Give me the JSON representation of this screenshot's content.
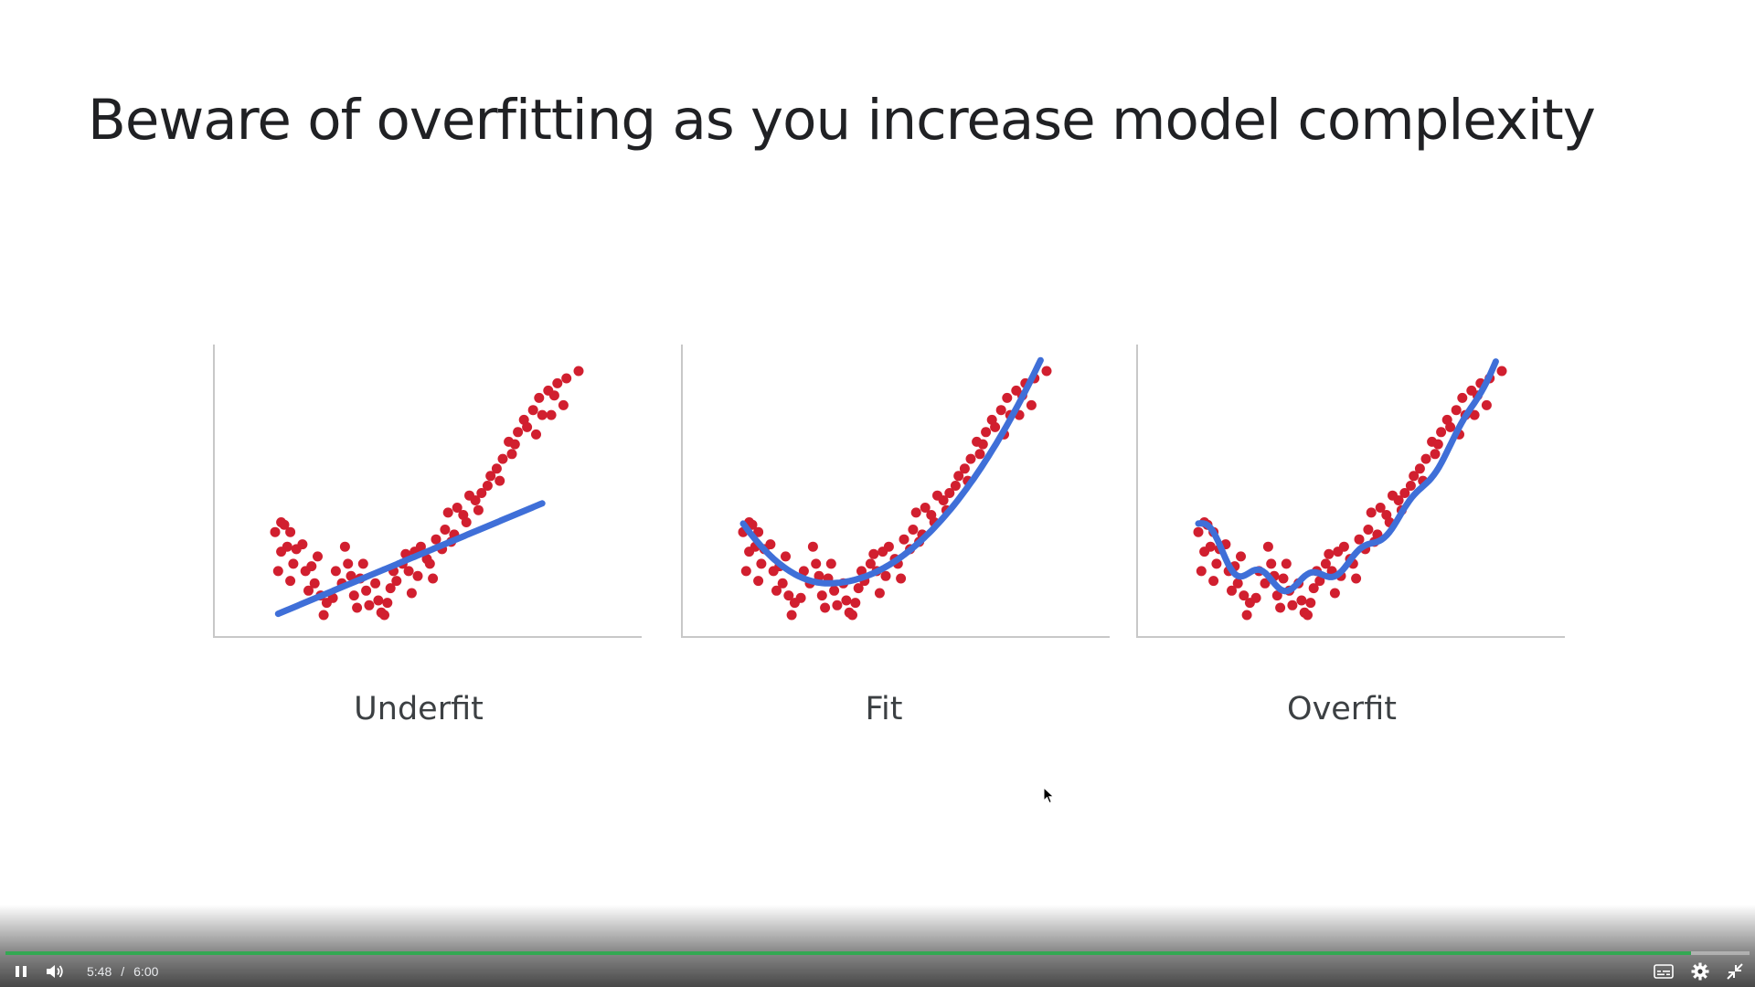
{
  "slide": {
    "title": "Beware of overfitting as you increase model complexity",
    "panels": [
      {
        "label": "Underfit",
        "fit": "linear"
      },
      {
        "label": "Fit",
        "fit": "quadratic"
      },
      {
        "label": "Overfit",
        "fit": "high-degree polynomial"
      }
    ]
  },
  "chart_data": {
    "type": "scatter",
    "point_color": "#d11f2f",
    "line_color": "#3f6fd8",
    "x_range": [
      0,
      1
    ],
    "y_range": [
      0,
      1
    ],
    "points": [
      [
        0.02,
        0.38
      ],
      [
        0.03,
        0.37
      ],
      [
        0.0,
        0.34
      ],
      [
        0.05,
        0.34
      ],
      [
        0.04,
        0.28
      ],
      [
        0.02,
        0.26
      ],
      [
        0.07,
        0.27
      ],
      [
        0.09,
        0.29
      ],
      [
        0.01,
        0.18
      ],
      [
        0.05,
        0.14
      ],
      [
        0.06,
        0.21
      ],
      [
        0.1,
        0.18
      ],
      [
        0.12,
        0.2
      ],
      [
        0.11,
        0.1
      ],
      [
        0.15,
        0.08
      ],
      [
        0.13,
        0.13
      ],
      [
        0.17,
        0.05
      ],
      [
        0.19,
        0.07
      ],
      [
        0.16,
        0.0
      ],
      [
        0.2,
        0.18
      ],
      [
        0.22,
        0.13
      ],
      [
        0.24,
        0.21
      ],
      [
        0.25,
        0.16
      ],
      [
        0.26,
        0.08
      ],
      [
        0.27,
        0.03
      ],
      [
        0.28,
        0.15
      ],
      [
        0.3,
        0.1
      ],
      [
        0.31,
        0.04
      ],
      [
        0.33,
        0.13
      ],
      [
        0.34,
        0.06
      ],
      [
        0.35,
        0.01
      ],
      [
        0.36,
        0.0
      ],
      [
        0.38,
        0.11
      ],
      [
        0.39,
        0.18
      ],
      [
        0.4,
        0.14
      ],
      [
        0.42,
        0.21
      ],
      [
        0.43,
        0.25
      ],
      [
        0.44,
        0.18
      ],
      [
        0.45,
        0.09
      ],
      [
        0.47,
        0.16
      ],
      [
        0.48,
        0.28
      ],
      [
        0.5,
        0.23
      ],
      [
        0.51,
        0.21
      ],
      [
        0.53,
        0.31
      ],
      [
        0.55,
        0.27
      ],
      [
        0.56,
        0.35
      ],
      [
        0.57,
        0.42
      ],
      [
        0.58,
        0.3
      ],
      [
        0.6,
        0.44
      ],
      [
        0.62,
        0.41
      ],
      [
        0.63,
        0.38
      ],
      [
        0.64,
        0.49
      ],
      [
        0.66,
        0.47
      ],
      [
        0.68,
        0.5
      ],
      [
        0.7,
        0.53
      ],
      [
        0.71,
        0.57
      ],
      [
        0.73,
        0.6
      ],
      [
        0.74,
        0.55
      ],
      [
        0.75,
        0.64
      ],
      [
        0.77,
        0.71
      ],
      [
        0.78,
        0.66
      ],
      [
        0.8,
        0.75
      ],
      [
        0.82,
        0.8
      ],
      [
        0.83,
        0.77
      ],
      [
        0.85,
        0.84
      ],
      [
        0.87,
        0.89
      ],
      [
        0.88,
        0.82
      ],
      [
        0.9,
        0.92
      ],
      [
        0.92,
        0.9
      ],
      [
        0.93,
        0.95
      ],
      [
        0.95,
        0.86
      ],
      [
        0.96,
        0.97
      ],
      [
        1.0,
        1.0
      ],
      [
        0.14,
        0.24
      ],
      [
        0.23,
        0.28
      ],
      [
        0.29,
        0.21
      ],
      [
        0.37,
        0.05
      ],
      [
        0.46,
        0.26
      ],
      [
        0.52,
        0.15
      ],
      [
        0.59,
        0.33
      ],
      [
        0.67,
        0.43
      ],
      [
        0.79,
        0.7
      ],
      [
        0.86,
        0.74
      ],
      [
        0.91,
        0.82
      ]
    ]
  },
  "player": {
    "current_time": "5:48",
    "separator": "/",
    "duration": "6:00",
    "progress": 0.9667,
    "icons": {
      "play_pause": "pause-icon",
      "volume": "volume-icon",
      "captions": "captions-icon",
      "settings": "gear-icon",
      "fullscreen": "exit-fullscreen-icon"
    }
  }
}
